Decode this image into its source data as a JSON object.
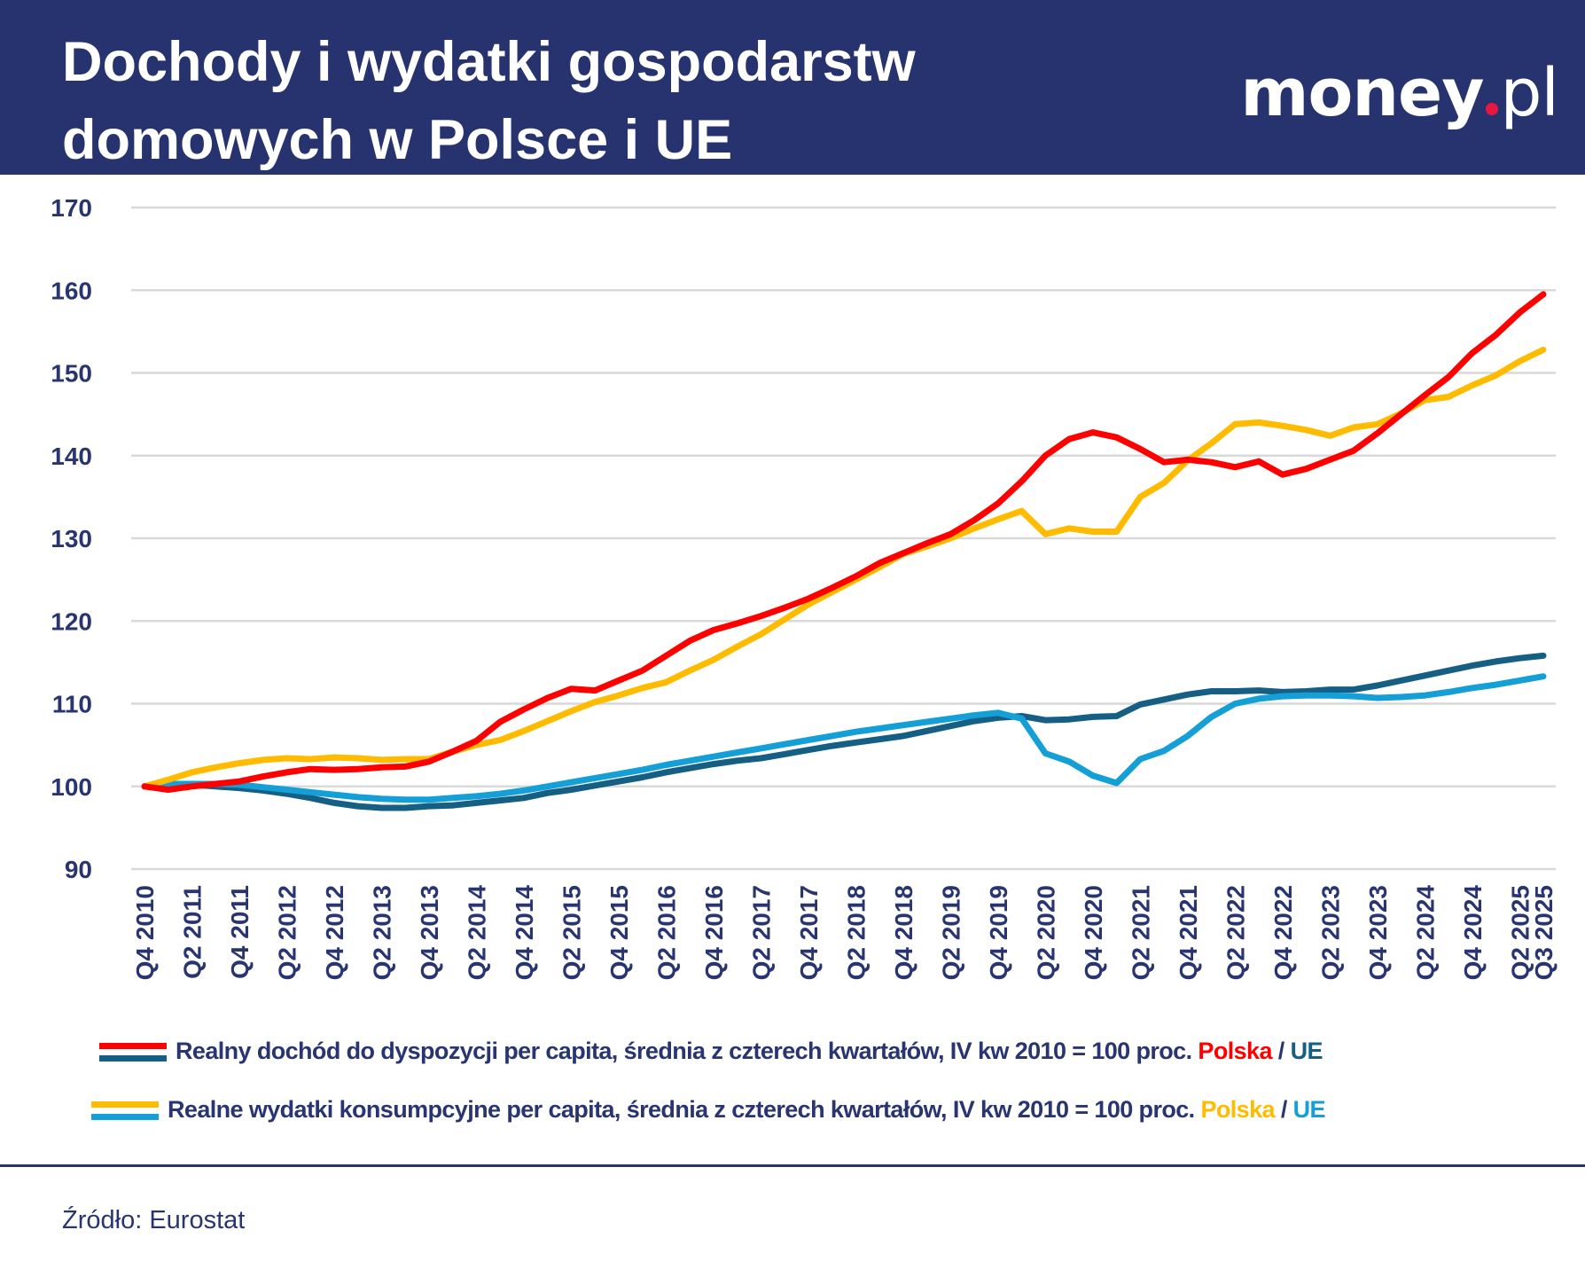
{
  "header": {
    "title_line1": "Dochody i wydatki gospodarstw",
    "title_line2": "domowych w Polsce i UE",
    "logo_text": "money.pl"
  },
  "chart_data": {
    "type": "line",
    "title": "Dochody i wydatki gospodarstw domowych w Polsce i UE",
    "ylim": [
      90,
      170
    ],
    "yticks": [
      90,
      100,
      110,
      120,
      130,
      140,
      150,
      160,
      170
    ],
    "grid": true,
    "legend_placement": "bottom",
    "categories": [
      "Q4 2010",
      "Q1 2011",
      "Q2 2011",
      "Q3 2011",
      "Q4 2011",
      "Q1 2012",
      "Q2 2012",
      "Q3 2012",
      "Q4 2012",
      "Q1 2013",
      "Q2 2013",
      "Q3 2013",
      "Q4 2013",
      "Q1 2014",
      "Q2 2014",
      "Q3 2014",
      "Q4 2014",
      "Q1 2015",
      "Q2 2015",
      "Q3 2015",
      "Q4 2015",
      "Q1 2016",
      "Q2 2016",
      "Q3 2016",
      "Q4 2016",
      "Q1 2017",
      "Q2 2017",
      "Q3 2017",
      "Q4 2017",
      "Q1 2018",
      "Q2 2018",
      "Q3 2018",
      "Q4 2018",
      "Q1 2019",
      "Q2 2019",
      "Q3 2019",
      "Q4 2019",
      "Q1 2020",
      "Q2 2020",
      "Q3 2020",
      "Q4 2020",
      "Q1 2021",
      "Q2 2021",
      "Q3 2021",
      "Q4 2021",
      "Q1 2022",
      "Q2 2022",
      "Q3 2022",
      "Q4 2022",
      "Q1 2023",
      "Q2 2023",
      "Q3 2023",
      "Q4 2023",
      "Q1 2024",
      "Q2 2024",
      "Q3 2024",
      "Q4 2024",
      "Q1 2025",
      "Q2 2025",
      "Q3 2025"
    ],
    "tick_labels": [
      "Q4 2010",
      "Q2 2011",
      "Q4 2011",
      "Q2 2012",
      "Q4 2012",
      "Q2 2013",
      "Q4 2013",
      "Q2 2014",
      "Q4 2014",
      "Q2 2015",
      "Q4 2015",
      "Q2 2016",
      "Q4 2016",
      "Q2 2017",
      "Q4 2017",
      "Q2 2018",
      "Q4 2018",
      "Q2 2019",
      "Q4 2019",
      "Q2 2020",
      "Q4 2020",
      "Q2 2021",
      "Q4 2021",
      "Q2 2022",
      "Q4 2022",
      "Q2 2023",
      "Q4 2023",
      "Q2 2024",
      "Q4 2024",
      "Q2 2025",
      "Q3 2025"
    ],
    "series": [
      {
        "key": "income_pl",
        "color": "#ff0000",
        "values": [
          100,
          99.6,
          100,
          100.3,
          100.6,
          101.2,
          101.7,
          102.1,
          102,
          102.1,
          102.3,
          102.4,
          103,
          104.2,
          105.5,
          107.8,
          109.3,
          110.7,
          111.8,
          111.6,
          112.8,
          114,
          115.8,
          117.6,
          118.9,
          119.7,
          120.6,
          121.6,
          122.7,
          124,
          125.4,
          127,
          128.2,
          129.4,
          130.5,
          132.2,
          134.2,
          136.9,
          140,
          142,
          142.8,
          142.2,
          140.8,
          139.2,
          139.5,
          139.2,
          138.6,
          139.3,
          137.7,
          138.4,
          139.5,
          140.6,
          142.7,
          145,
          147.3,
          149.5,
          152.4,
          154.6,
          157.3,
          159.5
        ]
      },
      {
        "key": "consumption_pl",
        "color": "#ffbb00",
        "values": [
          100,
          100.8,
          101.7,
          102.3,
          102.8,
          103.2,
          103.4,
          103.3,
          103.5,
          103.4,
          103.2,
          103.3,
          103.3,
          104.2,
          105,
          105.6,
          106.7,
          107.9,
          109.1,
          110.2,
          111,
          111.9,
          112.6,
          114,
          115.3,
          116.9,
          118.4,
          120.2,
          122,
          123.5,
          125,
          126.5,
          128.1,
          129,
          130,
          131.2,
          132.3,
          133.3,
          130.5,
          131.2,
          130.8,
          130.8,
          135,
          136.7,
          139.4,
          141.5,
          143.8,
          144,
          143.6,
          143.1,
          142.4,
          143.4,
          143.8,
          145.1,
          146.7,
          147.1,
          148.5,
          149.7,
          151.4,
          152.8
        ]
      },
      {
        "key": "income_eu",
        "color": "#155f84",
        "values": [
          100,
          100.2,
          100.2,
          100,
          99.8,
          99.5,
          99.1,
          98.6,
          98,
          97.6,
          97.4,
          97.4,
          97.6,
          97.7,
          98,
          98.3,
          98.6,
          99.2,
          99.6,
          100.1,
          100.6,
          101.1,
          101.7,
          102.2,
          102.7,
          103.1,
          103.4,
          103.9,
          104.4,
          104.9,
          105.3,
          105.7,
          106.1,
          106.7,
          107.3,
          107.9,
          108.3,
          108.5,
          108,
          108.1,
          108.4,
          108.5,
          109.9,
          110.5,
          111.1,
          111.5,
          111.5,
          111.6,
          111.4,
          111.5,
          111.7,
          111.7,
          112.2,
          112.8,
          113.4,
          114,
          114.6,
          115.1,
          115.5,
          115.8
        ]
      },
      {
        "key": "consumption_eu",
        "color": "#149fd6",
        "values": [
          100,
          100.3,
          100.3,
          100.3,
          100.2,
          99.9,
          99.6,
          99.3,
          99,
          98.7,
          98.5,
          98.4,
          98.4,
          98.6,
          98.8,
          99.1,
          99.5,
          100,
          100.5,
          101,
          101.5,
          102,
          102.6,
          103.1,
          103.6,
          104.1,
          104.6,
          105.1,
          105.6,
          106.1,
          106.6,
          107,
          107.4,
          107.8,
          108.2,
          108.6,
          108.9,
          108.2,
          104,
          103,
          101.3,
          100.4,
          103.3,
          104.3,
          106.1,
          108.4,
          110,
          110.6,
          110.9,
          111,
          111,
          110.9,
          110.7,
          110.8,
          111,
          111.4,
          111.9,
          112.3,
          112.8,
          113.3
        ]
      }
    ]
  },
  "legend": {
    "income_text": "Realny dochód do dyspozycji per capita, średnia z czterech kwartałów, IV kw 2010 = 100 proc.",
    "consumption_text": "Realne wydatki konsumpcyjne per capita, średnia z czterech kwartałów, IV kw 2010 = 100 proc.",
    "polska": "Polska",
    "slash": "/",
    "ue": "UE"
  },
  "colors": {
    "header": "#27336e",
    "text": "#283571",
    "grid": "#d9d9d9",
    "logo_dot": "#e8173f"
  },
  "source": "Źródło: Eurostat"
}
